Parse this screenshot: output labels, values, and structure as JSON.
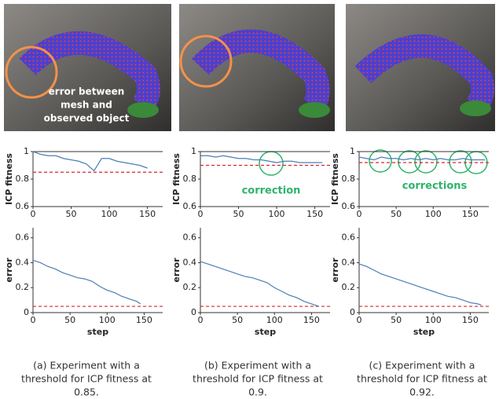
{
  "chart_data": [
    {
      "type": "line",
      "ylabel": "ICP fitness",
      "xlim": [
        0,
        170
      ],
      "xticks": [
        0,
        50,
        100,
        150
      ],
      "ylim": [
        0.6,
        1
      ],
      "yticks": [
        0.6,
        0.8,
        1
      ],
      "threshold": 0.85,
      "threshold_color": "#d62728",
      "x": [
        0,
        10,
        20,
        30,
        40,
        50,
        60,
        70,
        80,
        90,
        100,
        110,
        120,
        130,
        140,
        150
      ],
      "series": [
        {
          "color": "#4a7fb5",
          "values": [
            1.0,
            0.98,
            0.97,
            0.97,
            0.95,
            0.94,
            0.93,
            0.91,
            0.86,
            0.95,
            0.95,
            0.93,
            0.92,
            0.91,
            0.9,
            0.88
          ]
        }
      ]
    },
    {
      "type": "line",
      "ylabel": "ICP fitness",
      "xlim": [
        0,
        170
      ],
      "xticks": [
        0,
        50,
        100,
        150
      ],
      "ylim": [
        0.6,
        1
      ],
      "yticks": [
        0.6,
        0.8,
        1
      ],
      "threshold": 0.9,
      "threshold_color": "#d62728",
      "annotation": "correction",
      "x": [
        0,
        10,
        20,
        30,
        40,
        50,
        60,
        70,
        80,
        90,
        100,
        110,
        120,
        130,
        140,
        150,
        160
      ],
      "series": [
        {
          "color": "#4a7fb5",
          "values": [
            0.97,
            0.97,
            0.96,
            0.97,
            0.96,
            0.95,
            0.95,
            0.94,
            0.94,
            0.93,
            0.92,
            0.93,
            0.93,
            0.92,
            0.92,
            0.92,
            0.92
          ]
        }
      ]
    },
    {
      "type": "line",
      "ylabel": "ICP fitness",
      "xlim": [
        0,
        175
      ],
      "xticks": [
        0,
        50,
        100,
        150
      ],
      "ylim": [
        0.6,
        1
      ],
      "yticks": [
        0.6,
        0.8,
        1
      ],
      "threshold": 0.92,
      "threshold_color": "#d62728",
      "annotation": "corrections",
      "x": [
        0,
        10,
        20,
        30,
        40,
        50,
        60,
        70,
        80,
        90,
        100,
        110,
        120,
        130,
        140,
        150,
        160,
        170
      ],
      "series": [
        {
          "color": "#4a7fb5",
          "values": [
            0.96,
            0.95,
            0.94,
            0.96,
            0.95,
            0.95,
            0.94,
            0.95,
            0.94,
            0.95,
            0.94,
            0.95,
            0.94,
            0.94,
            0.95,
            0.94,
            0.94,
            0.94
          ]
        }
      ]
    },
    {
      "type": "line",
      "ylabel": "error",
      "xlabel": "step",
      "xlim": [
        0,
        175
      ],
      "xticks": [
        0,
        50,
        100,
        150
      ],
      "ylim": [
        0,
        0.68
      ],
      "yticks": [
        0,
        0.2,
        0.4,
        0.6
      ],
      "threshold": 0.05,
      "threshold_color": "#d62728",
      "x": [
        0,
        10,
        20,
        30,
        40,
        50,
        60,
        70,
        80,
        90,
        100,
        110,
        120,
        130,
        140,
        145
      ],
      "series": [
        {
          "color": "#4a7fb5",
          "values": [
            0.42,
            0.4,
            0.37,
            0.35,
            0.32,
            0.3,
            0.28,
            0.27,
            0.25,
            0.21,
            0.18,
            0.16,
            0.13,
            0.11,
            0.09,
            0.07
          ]
        }
      ]
    },
    {
      "type": "line",
      "ylabel": "error",
      "xlabel": "step",
      "xlim": [
        0,
        175
      ],
      "xticks": [
        0,
        50,
        100,
        150
      ],
      "ylim": [
        0,
        0.68
      ],
      "yticks": [
        0,
        0.2,
        0.4,
        0.6
      ],
      "threshold": 0.05,
      "threshold_color": "#d62728",
      "x": [
        0,
        10,
        20,
        30,
        40,
        50,
        60,
        70,
        80,
        90,
        100,
        110,
        120,
        130,
        140,
        150,
        160
      ],
      "series": [
        {
          "color": "#4a7fb5",
          "values": [
            0.41,
            0.39,
            0.37,
            0.35,
            0.33,
            0.31,
            0.29,
            0.28,
            0.26,
            0.24,
            0.2,
            0.17,
            0.14,
            0.12,
            0.09,
            0.07,
            0.05
          ]
        }
      ]
    },
    {
      "type": "line",
      "ylabel": "error",
      "xlabel": "step",
      "xlim": [
        0,
        175
      ],
      "xticks": [
        0,
        50,
        100,
        150
      ],
      "ylim": [
        0,
        0.68
      ],
      "yticks": [
        0,
        0.2,
        0.4,
        0.6
      ],
      "threshold": 0.05,
      "threshold_color": "#d62728",
      "x": [
        0,
        10,
        20,
        30,
        40,
        50,
        60,
        70,
        80,
        90,
        100,
        110,
        120,
        130,
        140,
        150,
        160,
        165
      ],
      "series": [
        {
          "color": "#4a7fb5",
          "values": [
            0.39,
            0.37,
            0.34,
            0.31,
            0.29,
            0.27,
            0.25,
            0.23,
            0.21,
            0.19,
            0.17,
            0.15,
            0.13,
            0.12,
            0.1,
            0.08,
            0.07,
            0.06
          ]
        }
      ]
    }
  ],
  "photo_annotation": [
    "error between",
    "mesh and",
    "observed object"
  ],
  "captions": [
    [
      "(a) Experiment with a",
      "threshold for ICP fitness at",
      "0.85."
    ],
    [
      "(b) Experiment with a",
      "threshold for ICP fitness at",
      "0.9."
    ],
    [
      "(c) Experiment with a",
      "threshold for ICP fitness at",
      "0.92."
    ]
  ]
}
